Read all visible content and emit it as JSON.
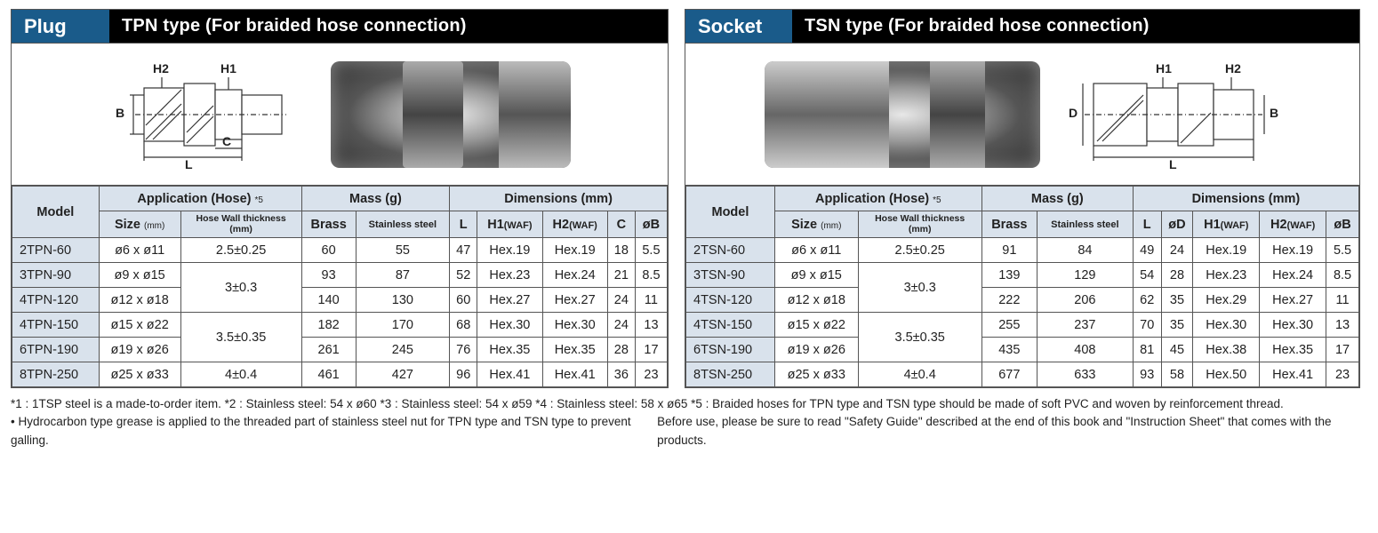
{
  "plug": {
    "tag": "Plug",
    "title": "TPN type (For braided hose connection)",
    "dim_labels": {
      "h2": "H2",
      "h1": "H1",
      "b": "B",
      "l": "L",
      "c": "C"
    },
    "headers": {
      "model": "Model",
      "application": "Application (Hose)",
      "app_note": "*5",
      "size": "Size",
      "size_unit": "(mm)",
      "wall": "Hose Wall thickness",
      "wall_unit": "(mm)",
      "mass": "Mass (g)",
      "brass": "Brass",
      "steel": "Stainless steel",
      "dimensions": "Dimensions (mm)",
      "l": "L",
      "h1": "H1",
      "h1_waf": "(WAF)",
      "h2": "H2",
      "h2_waf": "(WAF)",
      "c": "C",
      "ob": "øB"
    },
    "rows": [
      {
        "model": "2TPN-60",
        "size": "ø6 x ø11",
        "wall": "2.5±0.25",
        "wall_rowspan": 1,
        "brass": "60",
        "steel": "55",
        "l": "47",
        "h1": "Hex.19",
        "h2": "Hex.19",
        "c": "18",
        "ob": "5.5"
      },
      {
        "model": "3TPN-90",
        "size": "ø9 x ø15",
        "wall": "3±0.3",
        "wall_rowspan": 2,
        "brass": "93",
        "steel": "87",
        "l": "52",
        "h1": "Hex.23",
        "h2": "Hex.24",
        "c": "21",
        "ob": "8.5"
      },
      {
        "model": "4TPN-120",
        "size": "ø12 x ø18",
        "wall": null,
        "brass": "140",
        "steel": "130",
        "l": "60",
        "h1": "Hex.27",
        "h2": "Hex.27",
        "c": "24",
        "ob": "11"
      },
      {
        "model": "4TPN-150",
        "size": "ø15 x ø22",
        "wall": "3.5±0.35",
        "wall_rowspan": 2,
        "brass": "182",
        "steel": "170",
        "l": "68",
        "h1": "Hex.30",
        "h2": "Hex.30",
        "c": "24",
        "ob": "13"
      },
      {
        "model": "6TPN-190",
        "size": "ø19 x ø26",
        "wall": null,
        "brass": "261",
        "steel": "245",
        "l": "76",
        "h1": "Hex.35",
        "h2": "Hex.35",
        "c": "28",
        "ob": "17"
      },
      {
        "model": "8TPN-250",
        "size": "ø25 x ø33",
        "wall": "4±0.4",
        "wall_rowspan": 1,
        "brass": "461",
        "steel": "427",
        "l": "96",
        "h1": "Hex.41",
        "h2": "Hex.41",
        "c": "36",
        "ob": "23"
      }
    ]
  },
  "socket": {
    "tag": "Socket",
    "title": "TSN type (For braided hose connection)",
    "dim_labels": {
      "h1": "H1",
      "h2": "H2",
      "d": "D",
      "b": "B",
      "l": "L"
    },
    "headers": {
      "model": "Model",
      "application": "Application (Hose)",
      "app_note": "*5",
      "size": "Size",
      "size_unit": "(mm)",
      "wall": "Hose Wall thickness",
      "wall_unit": "(mm)",
      "mass": "Mass (g)",
      "brass": "Brass",
      "steel": "Stainless steel",
      "dimensions": "Dimensions (mm)",
      "l": "L",
      "od": "øD",
      "h1": "H1",
      "h1_waf": "(WAF)",
      "h2": "H2",
      "h2_waf": "(WAF)",
      "ob": "øB"
    },
    "rows": [
      {
        "model": "2TSN-60",
        "size": "ø6 x ø11",
        "wall": "2.5±0.25",
        "wall_rowspan": 1,
        "brass": "91",
        "steel": "84",
        "l": "49",
        "od": "24",
        "h1": "Hex.19",
        "h2": "Hex.19",
        "ob": "5.5"
      },
      {
        "model": "3TSN-90",
        "size": "ø9 x ø15",
        "wall": "3±0.3",
        "wall_rowspan": 2,
        "brass": "139",
        "steel": "129",
        "l": "54",
        "od": "28",
        "h1": "Hex.23",
        "h2": "Hex.24",
        "ob": "8.5"
      },
      {
        "model": "4TSN-120",
        "size": "ø12 x ø18",
        "wall": null,
        "brass": "222",
        "steel": "206",
        "l": "62",
        "od": "35",
        "h1": "Hex.29",
        "h2": "Hex.27",
        "ob": "11"
      },
      {
        "model": "4TSN-150",
        "size": "ø15 x ø22",
        "wall": "3.5±0.35",
        "wall_rowspan": 2,
        "brass": "255",
        "steel": "237",
        "l": "70",
        "od": "35",
        "h1": "Hex.30",
        "h2": "Hex.30",
        "ob": "13"
      },
      {
        "model": "6TSN-190",
        "size": "ø19 x ø26",
        "wall": null,
        "brass": "435",
        "steel": "408",
        "l": "81",
        "od": "45",
        "h1": "Hex.38",
        "h2": "Hex.35",
        "ob": "17"
      },
      {
        "model": "8TSN-250",
        "size": "ø25 x ø33",
        "wall": "4±0.4",
        "wall_rowspan": 1,
        "brass": "677",
        "steel": "633",
        "l": "93",
        "od": "58",
        "h1": "Hex.50",
        "h2": "Hex.41",
        "ob": "23"
      }
    ]
  },
  "footnotes": {
    "line1": "*1 : 1TSP steel is a made-to-order item.   *2 : Stainless steel: 54 x ø60   *3 : Stainless steel: 54 x ø59   *4 : Stainless steel: 58 x ø65   *5 : Braided hoses for TPN type and TSN type should be made of soft PVC and woven by reinforcement thread.",
    "line2_left": "• Hydrocarbon type grease is applied to the threaded part of stainless steel nut for TPN type and TSN type to prevent galling.",
    "line2_right": "Before use, please be sure to read \"Safety Guide\" described at the end of this book and \"Instruction Sheet\" that comes with the products."
  },
  "colors": {
    "header_bg": "#d9e2ec",
    "tag_bg": "#1a5b8a",
    "title_bg": "#000000",
    "border": "#555555"
  }
}
